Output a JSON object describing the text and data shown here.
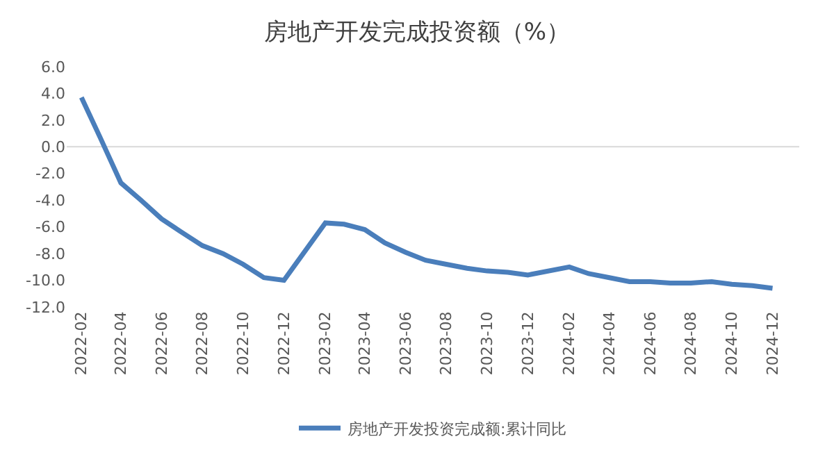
{
  "chart_data": {
    "type": "line",
    "title": "房地产开发完成投资额（%）",
    "x": [
      "2022-02",
      "2022-03",
      "2022-04",
      "2022-05",
      "2022-06",
      "2022-07",
      "2022-08",
      "2022-09",
      "2022-10",
      "2022-11",
      "2022-12",
      "2023-02",
      "2023-03",
      "2023-04",
      "2023-05",
      "2023-06",
      "2023-07",
      "2023-08",
      "2023-09",
      "2023-10",
      "2023-11",
      "2023-12",
      "2024-02",
      "2024-03",
      "2024-04",
      "2024-05",
      "2024-06",
      "2024-07",
      "2024-08",
      "2024-09",
      "2024-10",
      "2024-11",
      "2024-12"
    ],
    "series": [
      {
        "name": "房地产开发投资完成额:累计同比",
        "color": "#4a7ebb",
        "values": [
          3.7,
          0.7,
          -2.7,
          -4.0,
          -5.4,
          -6.4,
          -7.4,
          -8.0,
          -8.8,
          -9.8,
          -10.0,
          -5.7,
          -5.8,
          -6.2,
          -7.2,
          -7.9,
          -8.5,
          -8.8,
          -9.1,
          -9.3,
          -9.4,
          -9.6,
          -9.0,
          -9.5,
          -9.8,
          -10.1,
          -10.1,
          -10.2,
          -10.2,
          -10.1,
          -10.3,
          -10.4,
          -10.6
        ]
      }
    ],
    "xlim": [
      "2022-01-10",
      "2025-01-10"
    ],
    "xticks": [
      {
        "value": "2022-02",
        "label": "2022-02"
      },
      {
        "value": "2022-04",
        "label": "2022-04"
      },
      {
        "value": "2022-06",
        "label": "2022-06"
      },
      {
        "value": "2022-08",
        "label": "2022-08"
      },
      {
        "value": "2022-10",
        "label": "2022-10"
      },
      {
        "value": "2022-12",
        "label": "2022-12"
      },
      {
        "value": "2023-02",
        "label": "2023-02"
      },
      {
        "value": "2023-04",
        "label": "2023-04"
      },
      {
        "value": "2023-06",
        "label": "2023-06"
      },
      {
        "value": "2023-08",
        "label": "2023-08"
      },
      {
        "value": "2023-10",
        "label": "2023-10"
      },
      {
        "value": "2023-12",
        "label": "2023-12"
      },
      {
        "value": "2024-02",
        "label": "2024-02"
      },
      {
        "value": "2024-04",
        "label": "2024-04"
      },
      {
        "value": "2024-06",
        "label": "2024-06"
      },
      {
        "value": "2024-08",
        "label": "2024-08"
      },
      {
        "value": "2024-10",
        "label": "2024-10"
      },
      {
        "value": "2024-12",
        "label": "2024-12"
      }
    ],
    "ylim": [
      -12,
      6
    ],
    "yticks": [
      {
        "value": 6,
        "label": "6.0"
      },
      {
        "value": 4,
        "label": "4.0"
      },
      {
        "value": 2,
        "label": "2.0"
      },
      {
        "value": 0,
        "label": "0.0"
      },
      {
        "value": -2,
        "label": "-2.0"
      },
      {
        "value": -4,
        "label": "-4.0"
      },
      {
        "value": -6,
        "label": "-6.0"
      },
      {
        "value": -8,
        "label": "-8.0"
      },
      {
        "value": -10,
        "label": "-10.0"
      },
      {
        "value": -12,
        "label": "-12.0"
      }
    ],
    "ref_lines": [
      {
        "axis": "y",
        "value": 0,
        "color": "#d9d9d9"
      }
    ],
    "legend": "bottom",
    "grid": false,
    "marker": "none",
    "line_style": "solid"
  }
}
